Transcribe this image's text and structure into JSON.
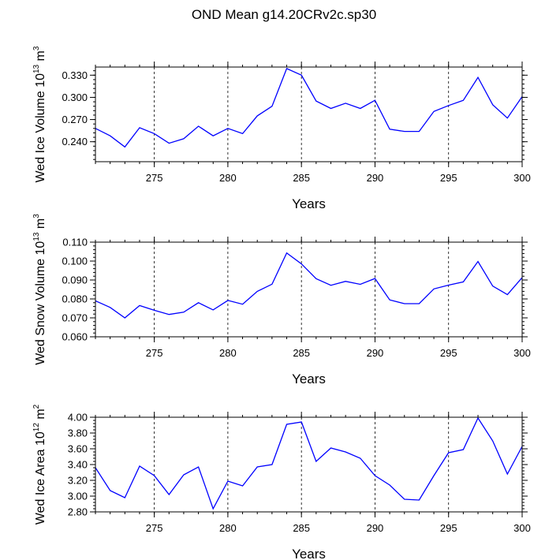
{
  "title": "OND Mean g14.20CRv2c.sp30",
  "chart_data": [
    {
      "type": "line",
      "xlabel": "Years",
      "ylabel_parts": [
        "Wed Ice Volume 10",
        "13",
        " m",
        "3"
      ],
      "xlim": [
        271,
        300
      ],
      "ylim": [
        0.213,
        0.341
      ],
      "xticks": [
        275,
        280,
        285,
        290,
        295,
        300
      ],
      "xtick_labels": [
        "275",
        "280",
        "285",
        "290",
        "295",
        "300"
      ],
      "yticks": [
        0.24,
        0.27,
        0.3,
        0.33
      ],
      "ytick_labels": [
        "0.240",
        "0.270",
        "0.300",
        "0.330"
      ],
      "series": [
        {
          "name": "Wed Ice Volume",
          "x": [
            271,
            272,
            273,
            274,
            275,
            276,
            277,
            278,
            279,
            280,
            281,
            282,
            283,
            284,
            285,
            286,
            287,
            288,
            289,
            290,
            291,
            292,
            293,
            294,
            295,
            296,
            297,
            298,
            299,
            300
          ],
          "values": [
            0.258,
            0.248,
            0.233,
            0.259,
            0.251,
            0.238,
            0.244,
            0.261,
            0.248,
            0.258,
            0.251,
            0.275,
            0.288,
            0.339,
            0.33,
            0.295,
            0.285,
            0.292,
            0.285,
            0.296,
            0.257,
            0.254,
            0.254,
            0.281,
            0.289,
            0.296,
            0.327,
            0.29,
            0.272,
            0.301
          ],
          "color": "#0000ff"
        }
      ]
    },
    {
      "type": "line",
      "xlabel": "Years",
      "ylabel_parts": [
        "Wed Snow Volume 10",
        "13",
        " m",
        "3"
      ],
      "xlim": [
        271,
        300
      ],
      "ylim": [
        0.06,
        0.11
      ],
      "xticks": [
        275,
        280,
        285,
        290,
        295,
        300
      ],
      "xtick_labels": [
        "275",
        "280",
        "285",
        "290",
        "295",
        "300"
      ],
      "yticks": [
        0.06,
        0.07,
        0.08,
        0.09,
        0.1,
        0.11
      ],
      "ytick_labels": [
        "0.060",
        "0.070",
        "0.080",
        "0.090",
        "0.100",
        "0.110"
      ],
      "series": [
        {
          "name": "Wed Snow Volume",
          "x": [
            271,
            272,
            273,
            274,
            275,
            276,
            277,
            278,
            279,
            280,
            281,
            282,
            283,
            284,
            285,
            286,
            287,
            288,
            289,
            290,
            291,
            292,
            293,
            294,
            295,
            296,
            297,
            298,
            299,
            300
          ],
          "values": [
            0.079,
            0.0755,
            0.07,
            0.0765,
            0.074,
            0.0718,
            0.073,
            0.078,
            0.0742,
            0.0792,
            0.0772,
            0.084,
            0.0878,
            0.1043,
            0.0985,
            0.0907,
            0.0872,
            0.0893,
            0.0877,
            0.0908,
            0.0795,
            0.0775,
            0.0775,
            0.0853,
            0.0873,
            0.089,
            0.0998,
            0.0868,
            0.0823,
            0.0913
          ],
          "color": "#0000ff"
        }
      ]
    },
    {
      "type": "line",
      "xlabel": "Years",
      "ylabel_parts": [
        "Wed Ice Area 10",
        "12",
        " m",
        "2"
      ],
      "xlim": [
        271,
        300
      ],
      "ylim": [
        2.8,
        4.0
      ],
      "xticks": [
        275,
        280,
        285,
        290,
        295,
        300
      ],
      "xtick_labels": [
        "275",
        "280",
        "285",
        "290",
        "295",
        "300"
      ],
      "yticks": [
        2.8,
        3.0,
        3.2,
        3.4,
        3.6,
        3.8,
        4.0
      ],
      "ytick_labels": [
        "2.80",
        "3.00",
        "3.20",
        "3.40",
        "3.60",
        "3.80",
        "4.00"
      ],
      "series": [
        {
          "name": "Wed Ice Area",
          "x": [
            271,
            272,
            273,
            274,
            275,
            276,
            277,
            278,
            279,
            280,
            281,
            282,
            283,
            284,
            285,
            286,
            287,
            288,
            289,
            290,
            291,
            292,
            293,
            294,
            295,
            296,
            297,
            298,
            299,
            300
          ],
          "values": [
            3.36,
            3.07,
            2.98,
            3.38,
            3.26,
            3.02,
            3.27,
            3.37,
            2.84,
            3.19,
            3.13,
            3.37,
            3.4,
            3.91,
            3.94,
            3.44,
            3.61,
            3.56,
            3.48,
            3.26,
            3.14,
            2.96,
            2.95,
            3.26,
            3.55,
            3.59,
            3.99,
            3.7,
            3.28,
            3.63
          ],
          "color": "#0000ff"
        }
      ]
    }
  ]
}
